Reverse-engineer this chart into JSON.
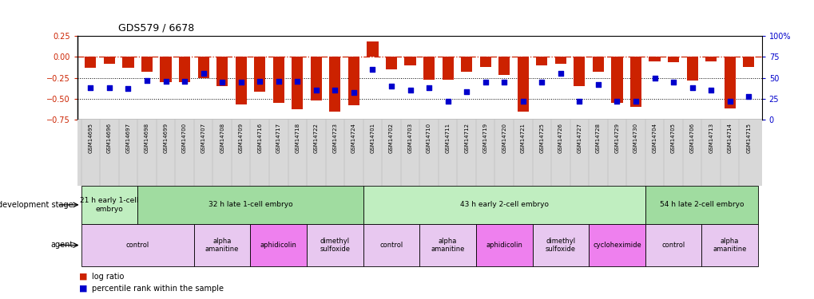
{
  "title": "GDS579 / 6678",
  "samples": [
    "GSM14695",
    "GSM14696",
    "GSM14697",
    "GSM14698",
    "GSM14699",
    "GSM14700",
    "GSM14707",
    "GSM14708",
    "GSM14709",
    "GSM14716",
    "GSM14717",
    "GSM14718",
    "GSM14722",
    "GSM14723",
    "GSM14724",
    "GSM14701",
    "GSM14702",
    "GSM14703",
    "GSM14710",
    "GSM14711",
    "GSM14712",
    "GSM14719",
    "GSM14720",
    "GSM14721",
    "GSM14725",
    "GSM14726",
    "GSM14727",
    "GSM14728",
    "GSM14729",
    "GSM14730",
    "GSM14704",
    "GSM14705",
    "GSM14706",
    "GSM14713",
    "GSM14714",
    "GSM14715"
  ],
  "log_ratio": [
    -0.13,
    -0.08,
    -0.13,
    -0.18,
    -0.3,
    -0.3,
    -0.25,
    -0.35,
    -0.57,
    -0.42,
    -0.55,
    -0.63,
    -0.52,
    -0.65,
    -0.58,
    0.18,
    -0.15,
    -0.1,
    -0.27,
    -0.27,
    -0.18,
    -0.12,
    -0.22,
    -0.65,
    -0.1,
    -0.08,
    -0.35,
    -0.18,
    -0.55,
    -0.6,
    -0.05,
    -0.06,
    -0.28,
    -0.05,
    -0.62,
    -0.12
  ],
  "percentile": [
    38,
    38,
    37,
    47,
    46,
    46,
    55,
    45,
    45,
    46,
    46,
    46,
    35,
    35,
    32,
    60,
    40,
    35,
    38,
    22,
    33,
    45,
    45,
    22,
    45,
    55,
    22,
    42,
    22,
    22,
    50,
    45,
    38,
    35,
    22,
    28
  ],
  "dev_stage_groups": [
    {
      "label": "21 h early 1-cell\nembryо",
      "start": 0,
      "end": 3,
      "color": "#C0EEC0"
    },
    {
      "label": "32 h late 1-cell embryo",
      "start": 3,
      "end": 15,
      "color": "#A0DCA0"
    },
    {
      "label": "43 h early 2-cell embryo",
      "start": 15,
      "end": 30,
      "color": "#C0EEC0"
    },
    {
      "label": "54 h late 2-cell embryo",
      "start": 30,
      "end": 36,
      "color": "#A0DCA0"
    }
  ],
  "agent_groups": [
    {
      "label": "control",
      "start": 0,
      "end": 6,
      "color": "#E8C8F0"
    },
    {
      "label": "alpha\namanitine",
      "start": 6,
      "end": 9,
      "color": "#E8C8F0"
    },
    {
      "label": "aphidicolin",
      "start": 9,
      "end": 12,
      "color": "#EE80EE"
    },
    {
      "label": "dimethyl\nsulfoxide",
      "start": 12,
      "end": 15,
      "color": "#E8C8F0"
    },
    {
      "label": "control",
      "start": 15,
      "end": 18,
      "color": "#E8C8F0"
    },
    {
      "label": "alpha\namanitine",
      "start": 18,
      "end": 21,
      "color": "#E8C8F0"
    },
    {
      "label": "aphidicolin",
      "start": 21,
      "end": 24,
      "color": "#EE80EE"
    },
    {
      "label": "dimethyl\nsulfoxide",
      "start": 24,
      "end": 27,
      "color": "#E8C8F0"
    },
    {
      "label": "cycloheximide",
      "start": 27,
      "end": 30,
      "color": "#EE80EE"
    },
    {
      "label": "control",
      "start": 30,
      "end": 33,
      "color": "#E8C8F0"
    },
    {
      "label": "alpha\namanitine",
      "start": 33,
      "end": 36,
      "color": "#E8C8F0"
    }
  ],
  "bar_color": "#CC2200",
  "scatter_color": "#0000CC",
  "ylim_left": [
    -0.75,
    0.25
  ],
  "ylim_right": [
    0,
    100
  ],
  "yticks_left": [
    -0.75,
    -0.5,
    -0.25,
    0,
    0.25
  ],
  "yticks_right": [
    0,
    25,
    50,
    75,
    100
  ],
  "hline_color": "#CC2200",
  "dotted_vals": [
    -0.25,
    -0.5
  ],
  "bg_color": "#ffffff",
  "xtick_bg": "#D8D8D8"
}
